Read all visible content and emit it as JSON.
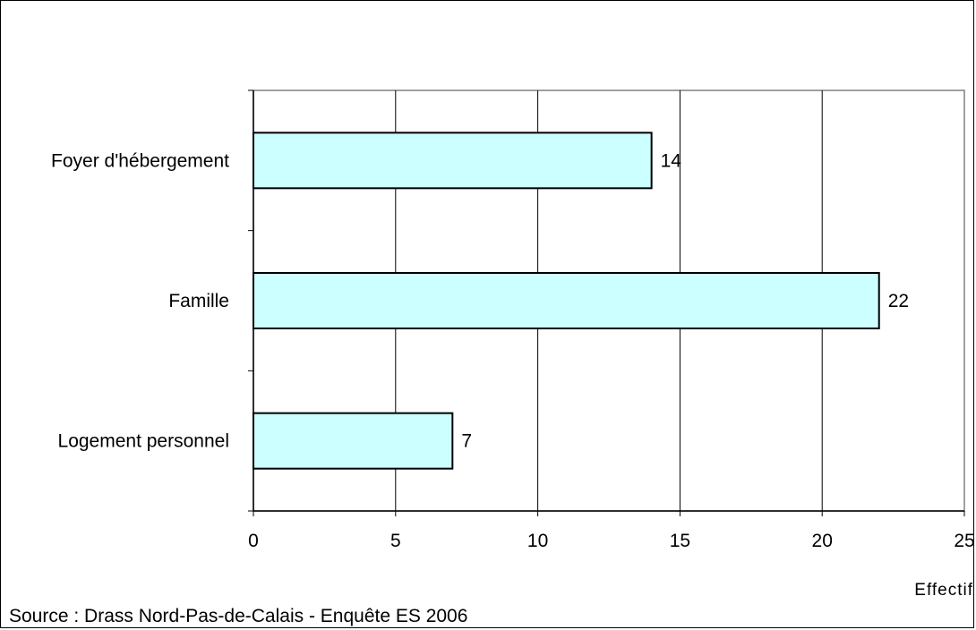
{
  "chart_data": {
    "type": "bar",
    "orientation": "horizontal",
    "categories": [
      "Foyer d'hébergement",
      "Famille",
      "Logement personnel"
    ],
    "values": [
      14,
      22,
      7
    ],
    "data_labels": [
      "14",
      "22",
      "7"
    ],
    "title": "",
    "xlabel": "Effectif",
    "ylabel": "",
    "xlim": [
      0,
      25
    ],
    "x_ticks": [
      "0",
      "5",
      "10",
      "15",
      "20",
      "25"
    ],
    "grid": "vertical",
    "legend": "none",
    "colors": {
      "bar_fill": "#ccffff",
      "bar_stroke": "#000000",
      "plot_border": "#808080",
      "grid": "#000000"
    }
  },
  "source_note": "Source : Drass Nord-Pas-de-Calais - Enquête ES 2006"
}
